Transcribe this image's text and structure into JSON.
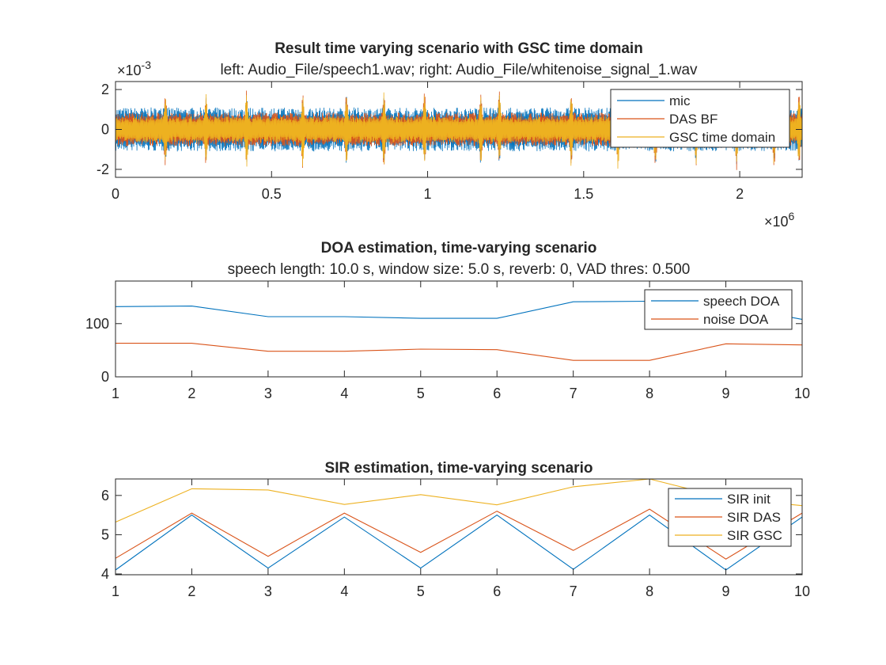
{
  "colors": {
    "series1": "#0072BD",
    "series2": "#D95319",
    "series3": "#EDB120",
    "axis": "#262626",
    "background": "#ffffff"
  },
  "chart_data": [
    {
      "type": "line",
      "title": "Result time varying scenario with GSC time domain",
      "subtitle": "left: Audio_File/speech1.wav; right: Audio_File/whitenoise_signal_1.wav",
      "xlabel": "",
      "ylabel": "",
      "xlim": [
        0,
        2200000
      ],
      "ylim": [
        -0.0024,
        0.0024
      ],
      "x_ticks": [
        0,
        500000,
        1000000,
        1500000,
        2000000
      ],
      "x_tick_labels": [
        "0",
        "0.5",
        "1",
        "1.5",
        "2"
      ],
      "y_ticks": [
        -0.002,
        0,
        0.002
      ],
      "y_tick_labels": [
        "-2",
        "0",
        "2"
      ],
      "x_exponent_label": "×10",
      "x_exponent": "6",
      "y_exponent_label": "×10",
      "y_exponent": "-3",
      "grid": false,
      "legend_position": "top-right",
      "series": [
        {
          "name": "mic",
          "amplitude": 0.0011
        },
        {
          "name": "DAS BF",
          "amplitude": 0.00085
        },
        {
          "name": "GSC time domain",
          "amplitude": 0.00065
        }
      ],
      "spikes_x": [
        160000,
        290000,
        420000,
        600000,
        740000,
        860000,
        990000,
        1170000,
        1230000,
        1460000,
        1610000,
        1730000,
        1860000,
        1990000,
        2110000,
        2190000
      ],
      "spike_amplitude": 0.0021
    },
    {
      "type": "line",
      "title": "DOA estimation, time-varying scenario",
      "subtitle": "speech length: 10.0 s, window size: 5.0 s, reverb: 0, VAD thres: 0.500",
      "xlabel": "",
      "ylabel": "",
      "x": [
        1,
        2,
        3,
        4,
        5,
        6,
        7,
        8,
        9,
        10
      ],
      "xlim": [
        1,
        10
      ],
      "ylim": [
        0,
        180
      ],
      "x_ticks": [
        1,
        2,
        3,
        4,
        5,
        6,
        7,
        8,
        9,
        10
      ],
      "y_ticks": [
        0,
        100
      ],
      "grid": false,
      "legend_position": "top-right",
      "series": [
        {
          "name": "speech DOA",
          "values": [
            132,
            133,
            113,
            113,
            110,
            110,
            141,
            142,
            135,
            108
          ]
        },
        {
          "name": "noise DOA",
          "values": [
            63,
            63,
            48,
            48,
            52,
            51,
            31,
            31,
            62,
            60
          ]
        }
      ]
    },
    {
      "type": "line",
      "title": "SIR estimation, time-varying scenario",
      "subtitle": "",
      "xlabel": "",
      "ylabel": "",
      "x": [
        1,
        2,
        3,
        4,
        5,
        6,
        7,
        8,
        9,
        10
      ],
      "xlim": [
        1,
        10
      ],
      "ylim": [
        3.98,
        6.42
      ],
      "x_ticks": [
        1,
        2,
        3,
        4,
        5,
        6,
        7,
        8,
        9,
        10
      ],
      "y_ticks": [
        4,
        5,
        6
      ],
      "grid": false,
      "legend_position": "top-right",
      "series": [
        {
          "name": "SIR init",
          "values": [
            4.1,
            5.5,
            4.15,
            5.45,
            4.15,
            5.5,
            4.12,
            5.5,
            4.1,
            5.45
          ]
        },
        {
          "name": "SIR DAS",
          "values": [
            4.4,
            5.55,
            4.45,
            5.55,
            4.55,
            5.6,
            4.6,
            5.65,
            4.38,
            5.55
          ]
        },
        {
          "name": "SIR GSC",
          "values": [
            5.32,
            6.17,
            6.14,
            5.77,
            6.02,
            5.76,
            6.22,
            6.42,
            5.93,
            5.74
          ]
        }
      ]
    }
  ]
}
